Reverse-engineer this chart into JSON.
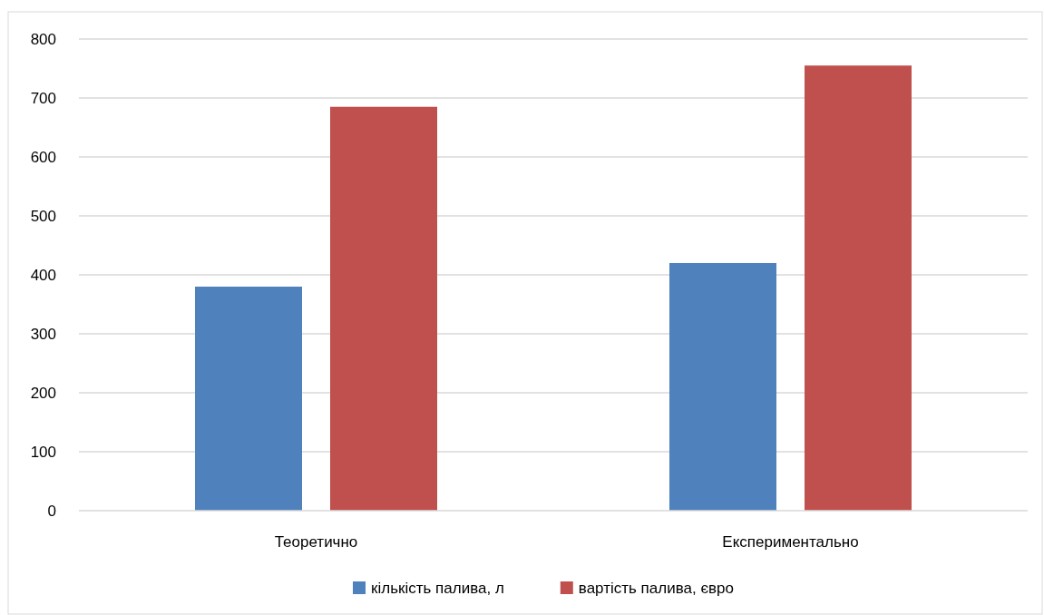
{
  "chart_data": {
    "type": "bar",
    "categories": [
      "Теоретично",
      "Експериментально"
    ],
    "series": [
      {
        "name": "кількість палива, л",
        "color": "#4f81bd",
        "values": [
          380,
          420
        ]
      },
      {
        "name": "вартість палива, євро",
        "color": "#c0504d",
        "values": [
          685,
          755
        ]
      }
    ],
    "ylim": [
      0,
      800
    ],
    "yticks": [
      0,
      100,
      200,
      300,
      400,
      500,
      600,
      700,
      800
    ],
    "grid": "y",
    "legend": "bottom"
  }
}
